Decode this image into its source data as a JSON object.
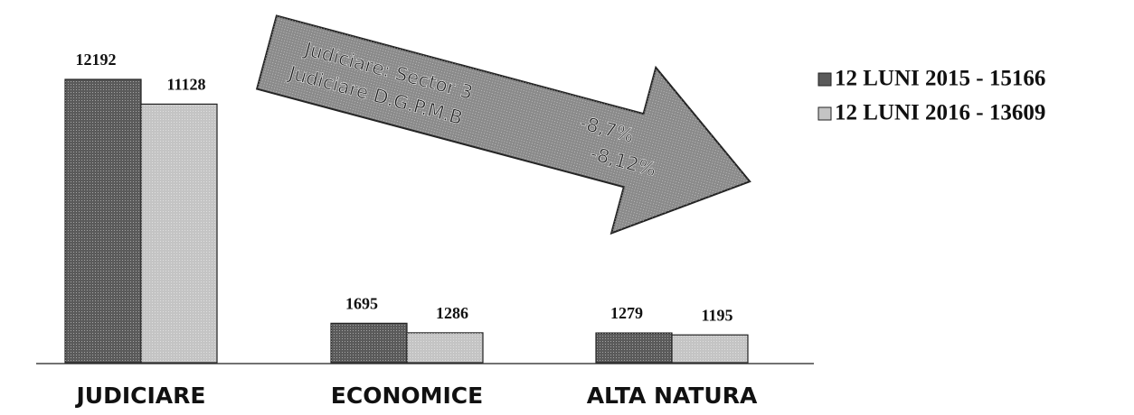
{
  "chart_data": {
    "type": "bar",
    "categories": [
      "JUDICIARE",
      "ECONOMICE",
      "ALTA NATURA"
    ],
    "series": [
      {
        "name": "12 LUNI 2015 - 15166",
        "color": "#5a5a5a",
        "values": [
          12192,
          1695,
          1279
        ]
      },
      {
        "name": "12 LUNI 2016 - 13609",
        "color": "#c4c4c4",
        "values": [
          11128,
          1286,
          1195
        ]
      }
    ],
    "annotations": [
      "Judiciare: Sector 3",
      "-8,7%",
      "Judiciare D.G.P.M.B",
      "-8,12%"
    ],
    "legend": "right"
  }
}
